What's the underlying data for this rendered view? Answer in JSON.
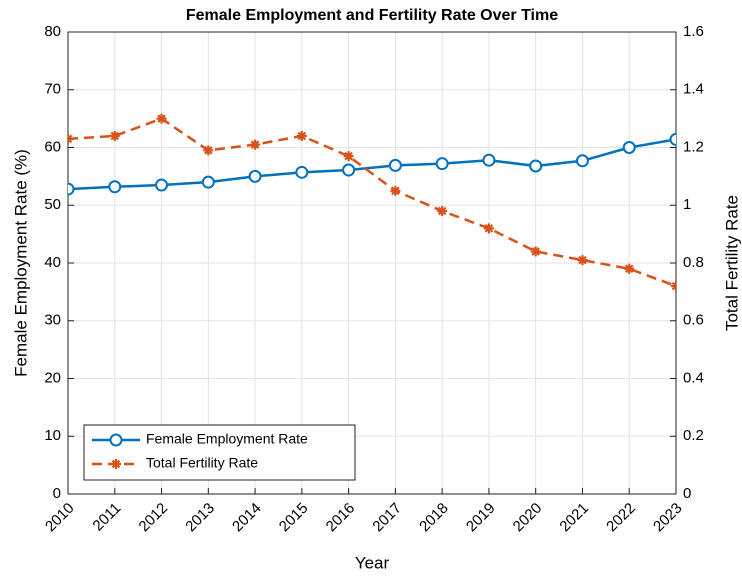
{
  "chart_data": {
    "type": "line",
    "title": "Female Employment and Fertility Rate Over Time",
    "x_label": "Year",
    "y_label": "Female Employment Rate (%)",
    "y2_label": "Total Fertility Rate",
    "x": [
      2010,
      2011,
      2012,
      2013,
      2014,
      2015,
      2016,
      2017,
      2018,
      2019,
      2020,
      2021,
      2022,
      2023
    ],
    "xlim": [
      2010,
      2023
    ],
    "xticks": [
      2010,
      2011,
      2012,
      2013,
      2014,
      2015,
      2016,
      2017,
      2018,
      2019,
      2020,
      2021,
      2022,
      2023
    ],
    "ylim": [
      0,
      80
    ],
    "yticks": [
      0,
      10,
      20,
      30,
      40,
      50,
      60,
      70,
      80
    ],
    "y2lim": [
      0,
      1.6
    ],
    "y2ticks": [
      0,
      0.2,
      0.4,
      0.6,
      0.8,
      1,
      1.2,
      1.4,
      1.6
    ],
    "grid": true,
    "legend": "lower left",
    "series": [
      {
        "name": "Female Employment Rate",
        "color": "#0072BD",
        "marker": "o",
        "dash": "solid",
        "values": [
          52.8,
          53.2,
          53.5,
          54.0,
          55.0,
          55.7,
          56.1,
          56.9,
          57.2,
          57.8,
          56.8,
          57.7,
          60.0,
          61.4
        ]
      },
      {
        "name": "Total Fertility Rate",
        "color": "#D95319",
        "marker": "*",
        "dash": "dashed",
        "axis": "y2",
        "values": [
          1.23,
          1.24,
          1.3,
          1.19,
          1.21,
          1.24,
          1.17,
          1.05,
          0.98,
          0.92,
          0.84,
          0.81,
          0.78,
          0.72
        ]
      }
    ]
  }
}
